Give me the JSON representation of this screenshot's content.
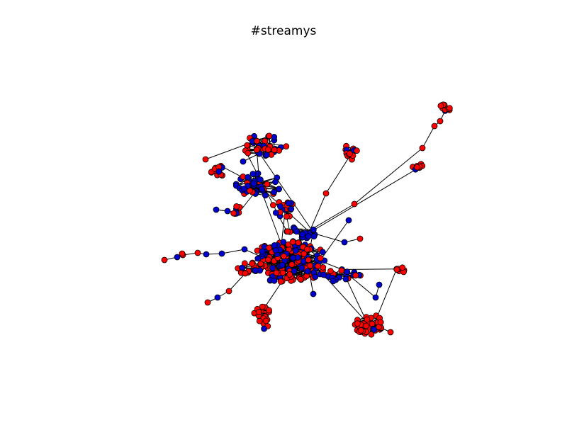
{
  "figure": {
    "title": "#streamys"
  },
  "colors": {
    "background": "#ffffff",
    "edge": "#000000",
    "node_red": "#ff0000",
    "node_blue": "#0000cc",
    "node_outline": "#000000"
  }
}
